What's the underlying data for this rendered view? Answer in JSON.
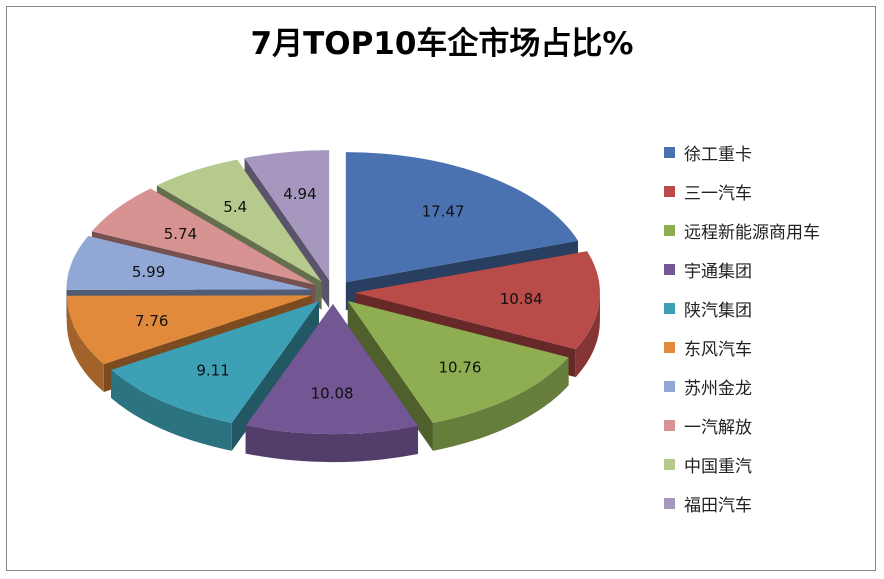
{
  "chart_data": {
    "type": "pie",
    "title": "7月TOP10车企市场占比%",
    "categories": [
      "徐工重卡",
      "三一汽车",
      "远程新能源商用车",
      "宇通集团",
      "陕汽集团",
      "东风汽车",
      "苏州金龙",
      "一汽解放",
      "中国重汽",
      "福田汽车"
    ],
    "values": [
      17.47,
      10.84,
      10.76,
      10.08,
      9.11,
      7.76,
      5.99,
      5.74,
      5.4,
      4.94
    ],
    "data_labels": [
      "17.47",
      "10.84",
      "10.76",
      "10.08",
      "9.11",
      "7.76",
      "5.99",
      "5.74",
      "5.4",
      "4.94"
    ],
    "colors": [
      "#4a72b0",
      "#b94b48",
      "#8fae52",
      "#735694",
      "#3da0b5",
      "#e18a3b",
      "#91a8d6",
      "#d79391",
      "#b6ca8d",
      "#a697bf"
    ],
    "style": "3d-exploded",
    "legend_position": "right"
  }
}
